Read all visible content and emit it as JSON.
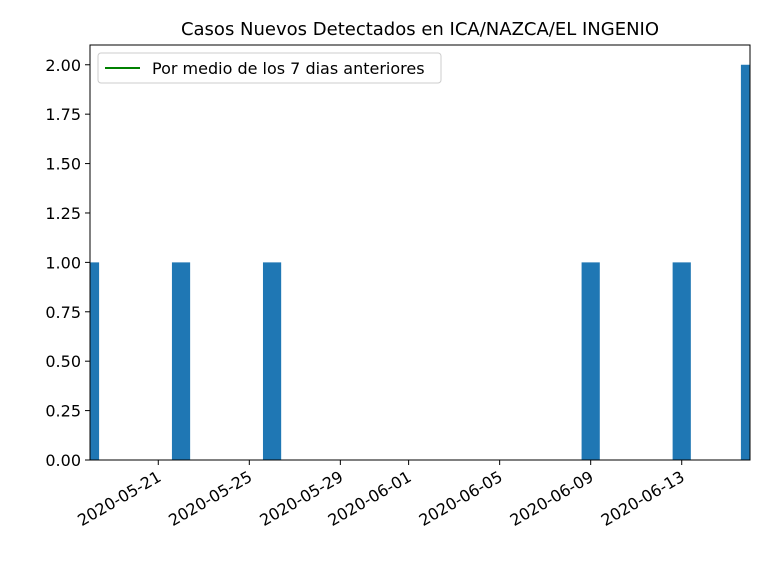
{
  "chart_data": {
    "type": "bar",
    "title": "Casos Nuevos Detectados en ICA/NAZCA/EL INGENIO",
    "xlabel": "",
    "ylabel": "",
    "x": [
      "2020-05-18",
      "2020-05-22",
      "2020-05-26",
      "2020-06-09",
      "2020-06-13",
      "2020-06-16"
    ],
    "values": [
      1,
      1,
      1,
      1,
      1,
      2
    ],
    "xlim": [
      "2020-05-18",
      "2020-06-16"
    ],
    "ylim": [
      0,
      2.1
    ],
    "x_ticks": [
      "2020-05-21",
      "2020-05-25",
      "2020-05-29",
      "2020-06-01",
      "2020-06-05",
      "2020-06-09",
      "2020-06-13"
    ],
    "y_ticks": [
      "0.00",
      "0.25",
      "0.50",
      "0.75",
      "1.00",
      "1.25",
      "1.50",
      "1.75",
      "2.00"
    ],
    "legend": {
      "position": "top-left",
      "entries": [
        {
          "label": "Por medio de los 7 dias anteriores",
          "color": "#008000",
          "marker": "line"
        }
      ]
    },
    "bar_color": "#1f77b4",
    "grid": false
  }
}
